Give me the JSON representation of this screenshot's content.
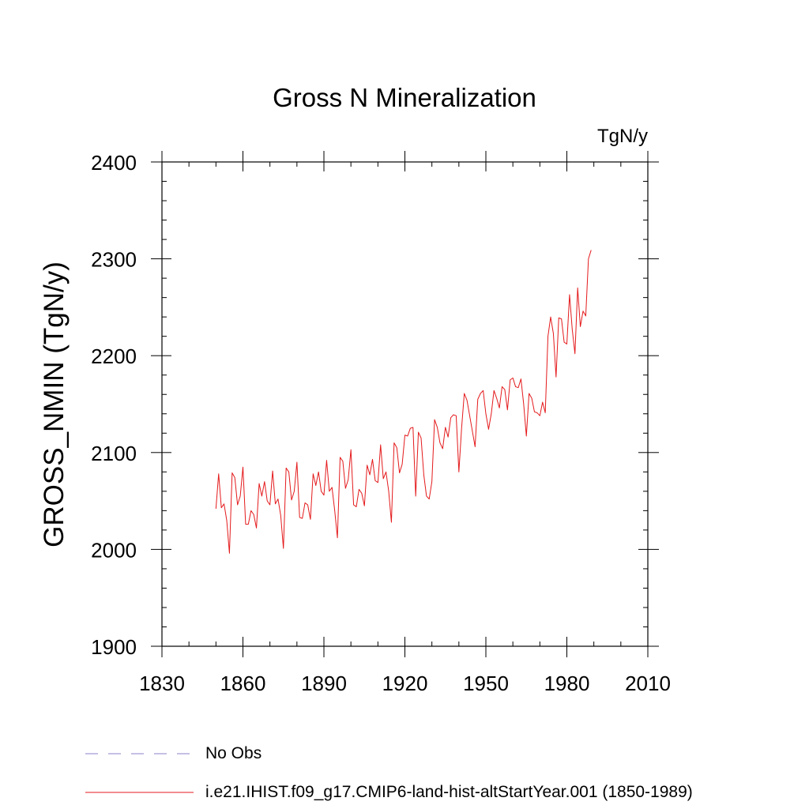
{
  "chart_data": {
    "type": "line",
    "title": "Gross N Mineralization",
    "units_label": "TgN/y",
    "xlabel": "",
    "ylabel": "GROSS_NMIN  (TgN/y)",
    "xlim": [
      1830,
      2010
    ],
    "ylim": [
      1900,
      2400
    ],
    "x_ticks": [
      1830,
      1860,
      1890,
      1920,
      1950,
      1980,
      2010
    ],
    "y_ticks": [
      1900,
      2000,
      2100,
      2200,
      2300,
      2400
    ],
    "grid": false,
    "legend_placement": "bottom-left",
    "legend": [
      {
        "label": "No Obs",
        "color": "#8a80c8",
        "style": "dashed"
      },
      {
        "label": "i.e21.IHIST.f09_g17.CMIP6-land-hist-altStartYear.001 (1850-1989)",
        "color": "#e41a1c",
        "style": "solid"
      }
    ],
    "series": [
      {
        "name": "i.e21.IHIST.f09_g17.CMIP6-land-hist-altStartYear.001 (1850-1989)",
        "color": "#e41a1c",
        "x_start": 1850,
        "x_step": 1,
        "values": [
          2042,
          2078,
          2043,
          2047,
          2030,
          1996,
          2079,
          2074,
          2046,
          2055,
          2085,
          2026,
          2026,
          2040,
          2036,
          2022,
          2068,
          2055,
          2070,
          2050,
          2046,
          2081,
          2047,
          2052,
          2035,
          2001,
          2084,
          2080,
          2051,
          2060,
          2090,
          2033,
          2032,
          2048,
          2046,
          2031,
          2078,
          2066,
          2080,
          2060,
          2056,
          2092,
          2060,
          2064,
          2040,
          2012,
          2095,
          2091,
          2063,
          2072,
          2103,
          2046,
          2044,
          2062,
          2058,
          2045,
          2087,
          2077,
          2093,
          2071,
          2069,
          2108,
          2073,
          2080,
          2060,
          2028,
          2110,
          2105,
          2079,
          2088,
          2118,
          2117,
          2125,
          2126,
          2055,
          2121,
          2115,
          2077,
          2055,
          2052,
          2070,
          2134,
          2126,
          2110,
          2104,
          2126,
          2116,
          2136,
          2139,
          2138,
          2080,
          2125,
          2161,
          2154,
          2138,
          2122,
          2106,
          2155,
          2161,
          2164,
          2140,
          2124,
          2140,
          2164,
          2156,
          2146,
          2168,
          2165,
          2144,
          2175,
          2177,
          2168,
          2167,
          2176,
          2150,
          2117,
          2161,
          2156,
          2142,
          2141,
          2138,
          2152,
          2141,
          2220,
          2240,
          2223,
          2178,
          2239,
          2238,
          2214,
          2212,
          2263,
          2227,
          2202,
          2270,
          2230,
          2246,
          2241,
          2300,
          2309
        ]
      }
    ]
  }
}
